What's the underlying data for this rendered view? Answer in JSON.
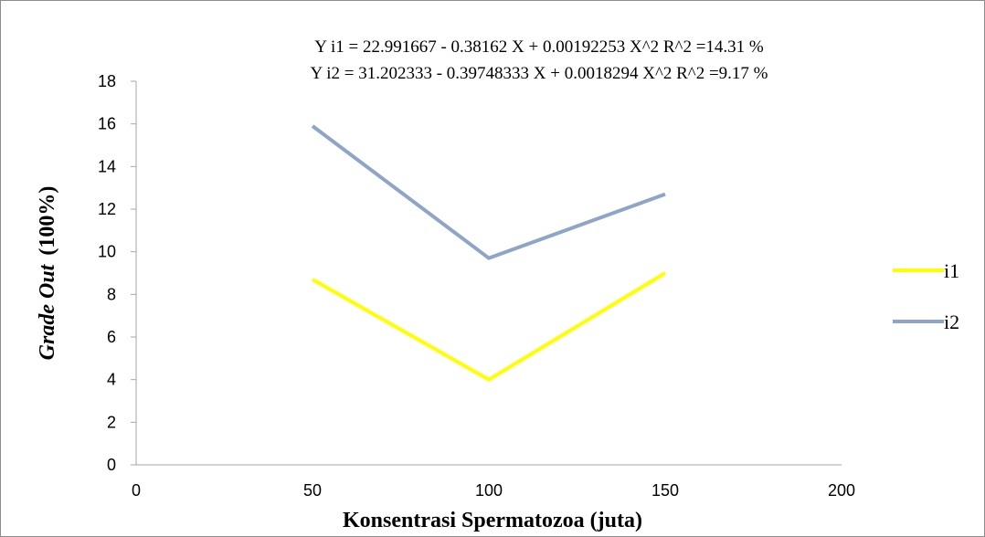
{
  "chart_data": {
    "type": "line",
    "title": "",
    "equations": [
      "Y i1 = 22.991667 - 0.38162 X  + 0.00192253 X^2       R^2 =14.31 %",
      "Y i2 = 31.202333 - 0.39748333 X  + 0.0018294 X^2       R^2 =9.17 %"
    ],
    "ylabel_italic": "Grade Out",
    "ylabel_plain": "(100%)",
    "xlabel": "Konsentrasi Spermatozoa (juta)",
    "x": [
      50,
      100,
      150
    ],
    "xlim": [
      0,
      200
    ],
    "ylim": [
      0,
      18
    ],
    "xticks": [
      "0",
      "50",
      "100",
      "150",
      "200"
    ],
    "yticks": [
      "0",
      "2",
      "4",
      "6",
      "8",
      "10",
      "12",
      "14",
      "16",
      "18"
    ],
    "grid": false,
    "legend_position": "right",
    "series": [
      {
        "name": "i1",
        "values": [
          8.7,
          4.0,
          9.0
        ],
        "color": "#ffff00"
      },
      {
        "name": "i2",
        "values": [
          15.9,
          9.7,
          12.7
        ],
        "color": "#8ea5c8"
      }
    ],
    "axis_color": "#a6a6a6"
  }
}
